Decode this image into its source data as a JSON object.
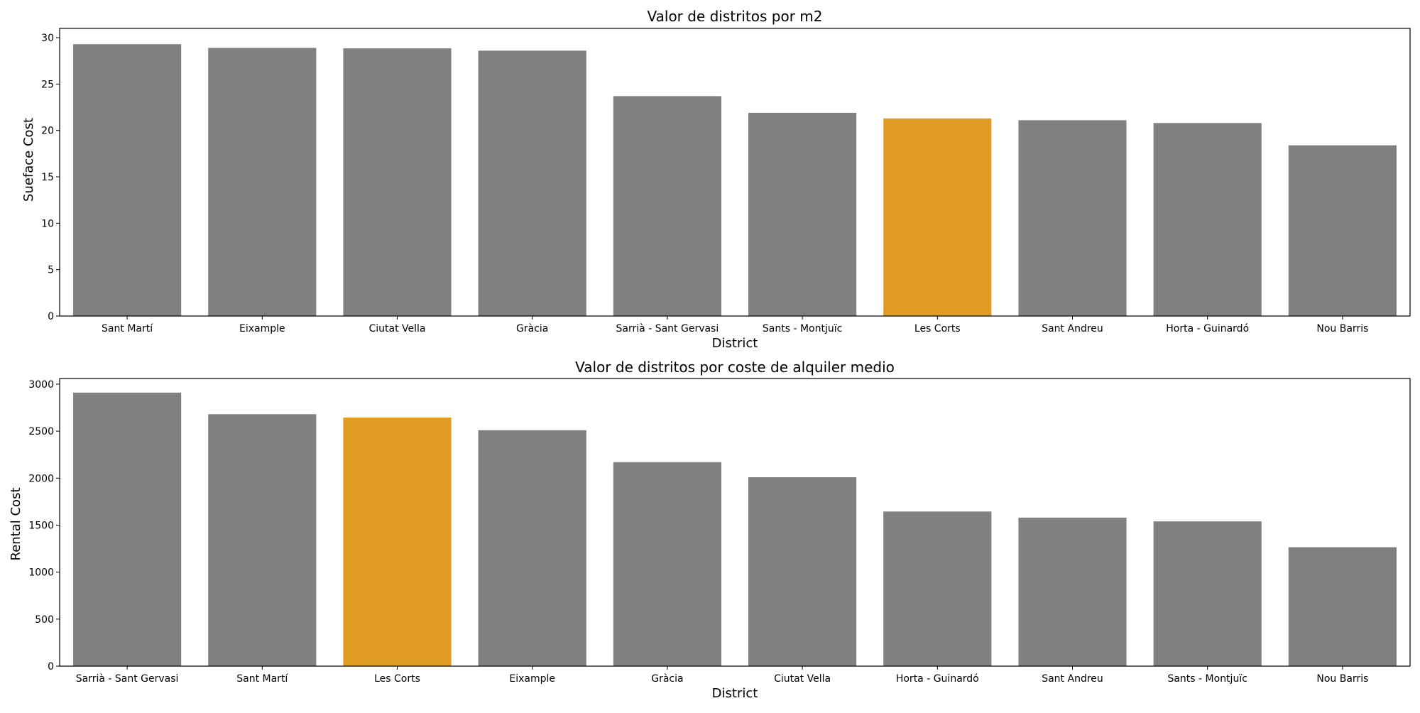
{
  "colors": {
    "default_bar": "#808080",
    "highlight_bar": "#e09c22",
    "axis": "#000000"
  },
  "chart_data": [
    {
      "type": "bar",
      "title": "Valor de distritos por m2",
      "xlabel": "District",
      "ylabel": "Sueface Cost",
      "ylim": [
        0,
        31
      ],
      "yticks": [
        0,
        5,
        10,
        15,
        20,
        25,
        30
      ],
      "grid": false,
      "highlight": "Les Corts",
      "categories": [
        "Sant Martí",
        "Eixample",
        "Ciutat Vella",
        "Gràcia",
        "Sarrià - Sant Gervasi",
        "Sants - Montjuïc",
        "Les Corts",
        "Sant Andreu",
        "Horta - Guinardó",
        "Nou Barris"
      ],
      "values": [
        29.3,
        28.9,
        28.85,
        28.6,
        23.7,
        21.9,
        21.3,
        21.1,
        20.8,
        18.4
      ]
    },
    {
      "type": "bar",
      "title": "Valor de distritos por coste de alquiler medio",
      "xlabel": "District",
      "ylabel": "Rental Cost",
      "ylim": [
        0,
        3060
      ],
      "yticks": [
        0,
        500,
        1000,
        1500,
        2000,
        2500,
        3000
      ],
      "grid": false,
      "highlight": "Les Corts",
      "categories": [
        "Sarrià - Sant Gervasi",
        "Sant Martí",
        "Les Corts",
        "Eixample",
        "Gràcia",
        "Ciutat Vella",
        "Horta - Guinardó",
        "Sant Andreu",
        "Sants - Montjuïc",
        "Nou Barris"
      ],
      "values": [
        2910,
        2680,
        2645,
        2510,
        2170,
        2010,
        1645,
        1580,
        1540,
        1265
      ]
    }
  ]
}
